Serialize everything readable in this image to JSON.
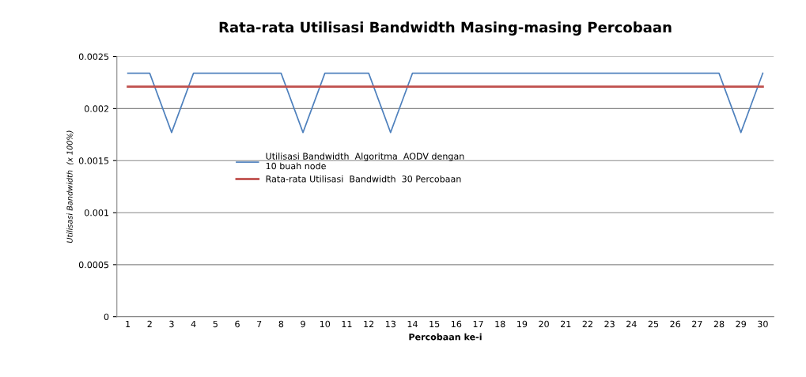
{
  "chart_data": {
    "type": "line",
    "title": "Rata-rata Utilisasi Bandwidth Masing-masing Percobaan",
    "xlabel": "Percobaan ke-i",
    "ylabel": "Utilisasi Bandwidth  (x 100%)",
    "categories": [
      "1",
      "2",
      "3",
      "4",
      "5",
      "6",
      "7",
      "8",
      "9",
      "10",
      "11",
      "12",
      "13",
      "14",
      "15",
      "16",
      "17",
      "18",
      "19",
      "20",
      "21",
      "22",
      "23",
      "24",
      "25",
      "26",
      "27",
      "28",
      "29",
      "30"
    ],
    "series": [
      {
        "name": "Utilisasi Bandwidth  Algoritma  AODV dengan\n10 buah node",
        "color": "#4f81bd",
        "values": [
          0.00234,
          0.00234,
          0.00177,
          0.00234,
          0.00234,
          0.00234,
          0.00234,
          0.00234,
          0.00177,
          0.00234,
          0.00234,
          0.00234,
          0.00177,
          0.00234,
          0.00234,
          0.00234,
          0.00234,
          0.00234,
          0.00234,
          0.00234,
          0.00234,
          0.00234,
          0.00234,
          0.00234,
          0.00234,
          0.00234,
          0.00234,
          0.00234,
          0.00177,
          0.00234
        ]
      },
      {
        "name": "Rata-rata Utilisasi  Bandwidth  30 Percobaan",
        "color": "#c0504d",
        "values": [
          0.00221,
          0.00221,
          0.00221,
          0.00221,
          0.00221,
          0.00221,
          0.00221,
          0.00221,
          0.00221,
          0.00221,
          0.00221,
          0.00221,
          0.00221,
          0.00221,
          0.00221,
          0.00221,
          0.00221,
          0.00221,
          0.00221,
          0.00221,
          0.00221,
          0.00221,
          0.00221,
          0.00221,
          0.00221,
          0.00221,
          0.00221,
          0.00221,
          0.00221,
          0.00221
        ]
      }
    ],
    "ylim": [
      0,
      0.0025
    ],
    "yticks": [
      0,
      0.0005,
      0.001,
      0.0015,
      0.002,
      0.0025
    ],
    "grid": "y",
    "legend": "center",
    "marker": "none",
    "line_style": "solid"
  }
}
